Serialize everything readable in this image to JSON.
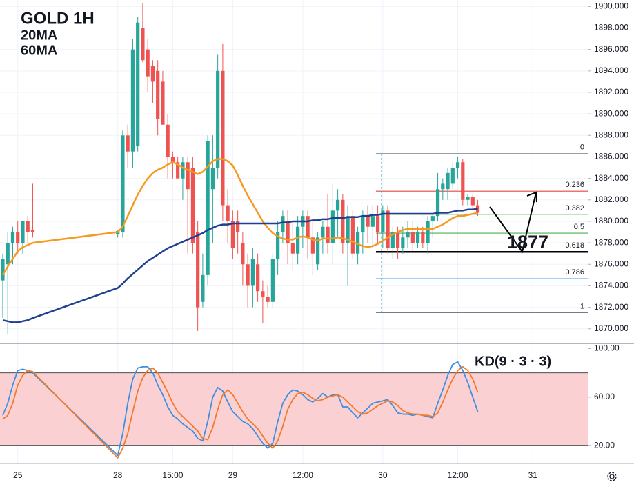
{
  "chart_data": [
    {
      "type": "candlestick",
      "title": "GOLD 1H",
      "x": [
        0,
        1,
        2,
        3,
        4,
        5,
        6,
        23,
        24,
        25,
        26,
        27,
        28,
        29,
        30,
        31,
        32,
        33,
        34,
        35,
        36,
        37,
        38,
        39,
        40,
        41,
        42,
        43,
        44,
        45,
        46,
        47,
        48,
        49,
        50,
        51,
        52,
        53,
        54,
        55,
        56,
        57,
        58,
        59,
        60,
        61,
        62,
        63,
        64,
        65,
        66,
        67,
        68,
        69,
        70,
        71,
        72,
        73,
        74,
        75,
        76,
        77,
        78,
        79,
        80,
        81,
        82,
        83,
        84,
        85,
        86,
        87,
        88,
        89,
        90,
        91,
        92,
        93,
        94,
        95
      ],
      "open": [
        1874.5,
        1876,
        1878,
        1879,
        1878,
        1880,
        1879.2,
        1878.8,
        1879,
        1888,
        1886.5,
        1887,
        1898,
        1896,
        1894.5,
        1894,
        1893,
        1889,
        1886,
        1885.5,
        1884,
        1885.5,
        1885,
        1879,
        1872.5,
        1875,
        1883,
        1885,
        1894,
        1881.5,
        1880,
        1880,
        1878,
        1876,
        1874,
        1876,
        1873.5,
        1873,
        1872.5,
        1876.5,
        1879,
        1880,
        1878,
        1877,
        1879.5,
        1880.5,
        1878.5,
        1876,
        1878.5,
        1879.5,
        1878,
        1881,
        1882,
        1878,
        1880.5,
        1877,
        1879,
        1880.5,
        1879.5,
        1880.5,
        1879,
        1881,
        1877.5,
        1879,
        1877.5,
        1878.5,
        1879,
        1878,
        1879,
        1878,
        1880,
        1880.5,
        1883,
        1883,
        1883.5,
        1885,
        1885.5,
        1882,
        1882.3,
        1881.5
      ],
      "high": [
        1877,
        1879,
        1879.5,
        1880,
        1880,
        1880.5,
        1883.5,
        1879.2,
        1888.5,
        1889,
        1897,
        1899,
        1900.3,
        1897,
        1895,
        1895,
        1894,
        1890,
        1886.5,
        1886,
        1886,
        1886,
        1886,
        1880,
        1877,
        1888,
        1888,
        1895.5,
        1896.5,
        1883,
        1881,
        1881,
        1879,
        1877,
        1877.5,
        1877,
        1874.5,
        1874,
        1877,
        1880,
        1881,
        1881,
        1880,
        1880.5,
        1881,
        1881,
        1880,
        1879,
        1880,
        1882.5,
        1883.5,
        1883,
        1882.5,
        1881.5,
        1881,
        1879.5,
        1881,
        1881.5,
        1881.5,
        1881.5,
        1881.5,
        1881.5,
        1879.5,
        1879.5,
        1879.5,
        1880,
        1880,
        1879.5,
        1879.5,
        1880.5,
        1880.8,
        1884.5,
        1884,
        1885,
        1885.5,
        1886,
        1885.8,
        1882.5,
        1882.5,
        1882
      ],
      "low": [
        1871,
        1869.5,
        1876,
        1877,
        1877,
        1878,
        1878.5,
        1878.5,
        1878.5,
        1885,
        1885,
        1886.5,
        1894.8,
        1892,
        1891,
        1888,
        1889,
        1884,
        1884,
        1884,
        1882,
        1877,
        1877,
        1869.8,
        1872,
        1874,
        1878,
        1884,
        1880,
        1878,
        1876.5,
        1877,
        1874,
        1872,
        1872,
        1872.5,
        1870.5,
        1872,
        1872,
        1875,
        1878,
        1876,
        1875.5,
        1876,
        1877.5,
        1876.5,
        1875,
        1875.5,
        1877,
        1877,
        1876,
        1878.5,
        1877,
        1874,
        1876.5,
        1876,
        1877,
        1878,
        1877.5,
        1878,
        1877.5,
        1877,
        1876.5,
        1876.5,
        1877,
        1877.5,
        1877,
        1877.5,
        1877.5,
        1877,
        1878.5,
        1880,
        1882,
        1882,
        1883,
        1884,
        1881.5,
        1881.5,
        1881,
        1880.5
      ],
      "close": [
        1876.5,
        1878,
        1879,
        1878,
        1880,
        1879,
        1879,
        1879.1,
        1888,
        1886.5,
        1896,
        1898.5,
        1895,
        1893.5,
        1893,
        1889.5,
        1889,
        1886,
        1885.5,
        1884,
        1885.5,
        1883,
        1878,
        1872,
        1875,
        1887.5,
        1885,
        1894,
        1881.5,
        1880,
        1877.5,
        1879,
        1876,
        1874,
        1876.5,
        1873.5,
        1873,
        1872.5,
        1876.5,
        1879,
        1880.5,
        1878,
        1877,
        1879.5,
        1880.5,
        1878.5,
        1877,
        1878.5,
        1879.5,
        1878,
        1881,
        1882,
        1878,
        1880.5,
        1877,
        1879,
        1880.5,
        1879.5,
        1880.5,
        1879,
        1881,
        1877.5,
        1879,
        1877.5,
        1878.5,
        1879,
        1878,
        1879,
        1878,
        1880,
        1880.5,
        1883,
        1883.5,
        1884.5,
        1885,
        1885.5,
        1882,
        1882.3,
        1881.5,
        1880.8
      ],
      "up_color": "#26a69a",
      "down_color": "#ef5350",
      "lines": [
        {
          "name": "20MA",
          "color": "#f59a1e",
          "values": [
            1875,
            1875.8,
            1876.5,
            1877.2,
            1877.6,
            1877.8,
            1878,
            1879,
            1879.5,
            1880.5,
            1881.5,
            1882.5,
            1883.3,
            1884,
            1884.5,
            1884.8,
            1885,
            1885.3,
            1885.5,
            1885.3,
            1885,
            1884.8,
            1884.6,
            1884.4,
            1884.6,
            1885.1,
            1885.6,
            1885.8,
            1885.8,
            1885.6,
            1885.2,
            1884.3,
            1883.3,
            1882.4,
            1881.6,
            1880.8,
            1880,
            1879.4,
            1878.9,
            1878.6,
            1878.4,
            1878.3,
            1878.3,
            1878.5,
            1878.6,
            1878.5,
            1878.3,
            1878.2,
            1878.4,
            1878.4,
            1878.4,
            1878.5,
            1878.4,
            1878.3,
            1878.1,
            1877.9,
            1877.7,
            1877.6,
            1877.7,
            1877.9,
            1878.2,
            1878.5,
            1878.8,
            1879,
            1879.2,
            1879.3,
            1879.3,
            1879.3,
            1879.3,
            1879.3,
            1879.3,
            1879.5,
            1879.7,
            1880,
            1880.3,
            1880.5,
            1880.5,
            1880.6,
            1880.7,
            1880.8
          ]
        },
        {
          "name": "60MA",
          "color": "#1f3f8f",
          "values": [
            1870.8,
            1870.7,
            1870.6,
            1870.6,
            1870.7,
            1870.8,
            1871,
            1873.8,
            1874.2,
            1874.7,
            1875.1,
            1875.5,
            1875.9,
            1876.3,
            1876.6,
            1876.9,
            1877.2,
            1877.5,
            1877.7,
            1877.9,
            1878.1,
            1878.3,
            1878.5,
            1878.7,
            1878.9,
            1879.2,
            1879.4,
            1879.6,
            1879.7,
            1879.7,
            1879.8,
            1879.8,
            1879.8,
            1879.8,
            1879.8,
            1879.8,
            1879.8,
            1879.8,
            1879.8,
            1879.8,
            1879.9,
            1879.9,
            1880,
            1880,
            1880,
            1880,
            1880.1,
            1880.1,
            1880.2,
            1880.2,
            1880.3,
            1880.3,
            1880.3,
            1880.4,
            1880.4,
            1880.4,
            1880.5,
            1880.5,
            1880.6,
            1880.6,
            1880.7,
            1880.7,
            1880.7,
            1880.7,
            1880.7,
            1880.7,
            1880.7,
            1880.7,
            1880.7,
            1880.7,
            1880.7,
            1880.8,
            1880.8,
            1880.8,
            1880.9,
            1881,
            1881,
            1881.1,
            1881.1,
            1881.2
          ]
        }
      ],
      "xlim": [
        -0.55,
        117
      ],
      "xticks": [
        {
          "value": 3,
          "label": "25"
        },
        {
          "value": 23,
          "label": "28"
        },
        {
          "value": 34,
          "label": "15:00"
        },
        {
          "value": 46,
          "label": "29"
        },
        {
          "value": 60,
          "label": "12:00"
        },
        {
          "value": 76,
          "label": "30"
        },
        {
          "value": 91,
          "label": "12:00"
        },
        {
          "value": 106,
          "label": "31"
        }
      ],
      "ylim": [
        1868.7,
        1900.6
      ],
      "yticks": [
        {
          "value": 1870,
          "label": "1870.000"
        },
        {
          "value": 1872,
          "label": "1872.000"
        },
        {
          "value": 1874,
          "label": "1874.000"
        },
        {
          "value": 1876,
          "label": "1876.000"
        },
        {
          "value": 1878,
          "label": "1878.000"
        },
        {
          "value": 1880,
          "label": "1880.000"
        },
        {
          "value": 1882,
          "label": "1882.000"
        },
        {
          "value": 1884,
          "label": "1884.000"
        },
        {
          "value": 1886,
          "label": "1886.000"
        },
        {
          "value": 1888,
          "label": "1888.000"
        },
        {
          "value": 1890,
          "label": "1890.000"
        },
        {
          "value": 1892,
          "label": "1892.000"
        },
        {
          "value": 1894,
          "label": "1894.000"
        },
        {
          "value": 1896,
          "label": "1896.000"
        },
        {
          "value": 1898,
          "label": "1898.000"
        },
        {
          "value": 1900,
          "label": "1900.000"
        }
      ],
      "grid": true,
      "fib": {
        "high": 1886.3,
        "low": 1871.5,
        "levels": [
          0,
          0.236,
          0.382,
          0.5,
          0.618,
          0.786,
          1
        ],
        "colors": [
          "#787b86",
          "#e04848",
          "#81c784",
          "#4caf50",
          "#000000",
          "#64b5f6",
          "#787b86"
        ]
      },
      "annotation": "1877"
    },
    {
      "type": "line",
      "title": "KD(9 · 3 · 3)",
      "series": [
        {
          "color": "#3d8fe0",
          "values": [
            45,
            55,
            70,
            82,
            83,
            82,
            80,
            12,
            30,
            55,
            75,
            84,
            85,
            85,
            80,
            70,
            62,
            52,
            45,
            42,
            38,
            35,
            32,
            26,
            24,
            40,
            60,
            68,
            65,
            56,
            48,
            44,
            40,
            38,
            34,
            28,
            22,
            18,
            22,
            40,
            55,
            62,
            66,
            65,
            62,
            58,
            56,
            59,
            63,
            60,
            62,
            62,
            52,
            52,
            47,
            43,
            47,
            51,
            55,
            56,
            57,
            58,
            53,
            47,
            46,
            46,
            45,
            46,
            45,
            44,
            43,
            55,
            66,
            78,
            87,
            89,
            82,
            72,
            60,
            48
          ]
        },
        {
          "color": "#f07a2a",
          "values": [
            42,
            45,
            55,
            70,
            78,
            82,
            81,
            10,
            18,
            30,
            48,
            65,
            76,
            82,
            84,
            80,
            72,
            64,
            55,
            48,
            44,
            40,
            36,
            32,
            26,
            25,
            35,
            50,
            62,
            66,
            62,
            55,
            48,
            42,
            38,
            34,
            28,
            22,
            18,
            24,
            36,
            50,
            58,
            63,
            64,
            62,
            59,
            57,
            58,
            60,
            61,
            62,
            60,
            56,
            52,
            48,
            46,
            47,
            50,
            53,
            55,
            57,
            56,
            53,
            49,
            47,
            46,
            46,
            45,
            45,
            44,
            47,
            56,
            66,
            75,
            82,
            85,
            82,
            75,
            64
          ]
        }
      ],
      "band": [
        20,
        80
      ],
      "ylim": [
        5.4,
        103.7
      ],
      "yticks": [
        {
          "value": 20,
          "label": "20.00"
        },
        {
          "value": 60,
          "label": "60.00"
        },
        {
          "value": 100,
          "label": "100.00"
        }
      ]
    }
  ]
}
